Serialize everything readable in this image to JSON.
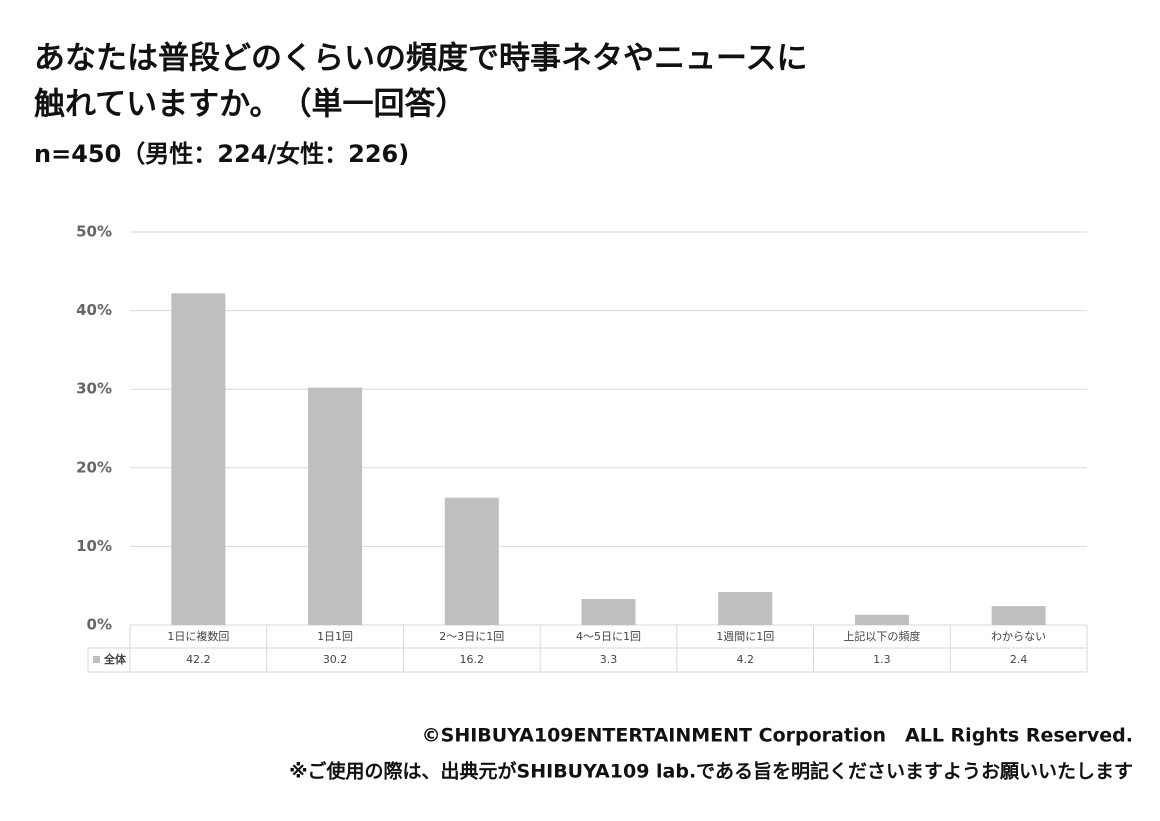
{
  "chart_data": {
    "type": "bar",
    "title": [
      "あなたは普段どのくらいの頻度で時事ネタやニュースに",
      "触れていますか。　（単一回答）"
    ],
    "subtitle": "n=450（男性：224/女性：226)",
    "categories": [
      "1日に複数回",
      "1日1回",
      "2～3日に1回",
      "4～5日に1回",
      "1週間に1回",
      "上記以下の頻度",
      "わからない"
    ],
    "series": [
      {
        "name": "全体",
        "color": "#bfbfbf",
        "values": [
          42.2,
          30.2,
          16.2,
          3.3,
          4.2,
          1.3,
          2.4
        ]
      }
    ],
    "ylim": [
      0,
      50
    ],
    "yticks": [
      {
        "value": 0,
        "label": "0%"
      },
      {
        "value": 10,
        "label": "10%"
      },
      {
        "value": 20,
        "label": "20%"
      },
      {
        "value": 30,
        "label": "30%"
      },
      {
        "value": 40,
        "label": "40%"
      },
      {
        "value": 50,
        "label": "50%"
      }
    ],
    "grid": true,
    "footer": [
      "©SHIBUYA109ENTERTAINMENT Corporation　ALL Rights Reserved.",
      "※ご使用の際は、出典元がSHIBUYA109 lab.である旨を明記くださいますようお願いいたします"
    ]
  }
}
